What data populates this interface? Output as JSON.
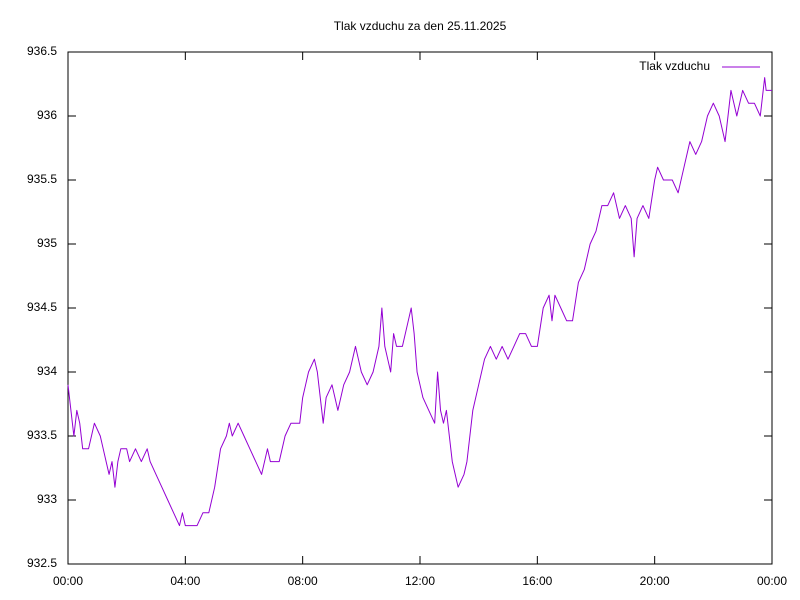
{
  "chart_data": {
    "type": "line",
    "title": "Tlak vzduchu za den 25.11.2025",
    "xlim": [
      0,
      24
    ],
    "xticks": [
      {
        "value": 0,
        "label": "00:00"
      },
      {
        "value": 4,
        "label": "04:00"
      },
      {
        "value": 8,
        "label": "08:00"
      },
      {
        "value": 12,
        "label": "12:00"
      },
      {
        "value": 16,
        "label": "16:00"
      },
      {
        "value": 20,
        "label": "20:00"
      },
      {
        "value": 24,
        "label": "00:00"
      }
    ],
    "ylim": [
      932.5,
      936.5
    ],
    "yticks": [
      932.5,
      933,
      933.5,
      934,
      934.5,
      935,
      935.5,
      936,
      936.5
    ],
    "grid": false,
    "legend": "top-right",
    "x": [
      0,
      0.1,
      0.2,
      0.3,
      0.4,
      0.5,
      0.7,
      0.8,
      0.9,
      1.1,
      1.2,
      1.3,
      1.4,
      1.5,
      1.6,
      1.7,
      1.8,
      2.0,
      2.1,
      2.3,
      2.5,
      2.7,
      2.8,
      3.0,
      3.2,
      3.4,
      3.6,
      3.8,
      3.9,
      4.0,
      4.2,
      4.4,
      4.6,
      4.8,
      5.0,
      5.2,
      5.4,
      5.5,
      5.6,
      5.8,
      6.0,
      6.2,
      6.4,
      6.6,
      6.8,
      6.9,
      7.2,
      7.4,
      7.6,
      7.9,
      8.0,
      8.1,
      8.2,
      8.4,
      8.5,
      8.6,
      8.7,
      8.8,
      9.0,
      9.2,
      9.4,
      9.6,
      9.8,
      9.9,
      10.0,
      10.2,
      10.4,
      10.6,
      10.7,
      10.8,
      10.9,
      11.0,
      11.1,
      11.2,
      11.4,
      11.6,
      11.7,
      11.8,
      11.9,
      12.0,
      12.1,
      12.3,
      12.5,
      12.6,
      12.7,
      12.8,
      12.9,
      13.0,
      13.1,
      13.2,
      13.3,
      13.5,
      13.6,
      13.7,
      13.8,
      14.0,
      14.2,
      14.4,
      14.6,
      14.8,
      15.0,
      15.2,
      15.4,
      15.6,
      15.8,
      16.0,
      16.2,
      16.4,
      16.5,
      16.6,
      16.8,
      17.0,
      17.2,
      17.4,
      17.6,
      17.8,
      18.0,
      18.2,
      18.4,
      18.6,
      18.8,
      19.0,
      19.2,
      19.3,
      19.4,
      19.6,
      19.8,
      20.0,
      20.1,
      20.3,
      20.6,
      20.8,
      21.0,
      21.2,
      21.4,
      21.6,
      21.8,
      22.0,
      22.2,
      22.4,
      22.6,
      22.8,
      23.0,
      23.2,
      23.4,
      23.6,
      23.75,
      23.8,
      24.0
    ],
    "series": [
      {
        "name": "Tlak vzduchu",
        "color": "#9400d3",
        "values": [
          933.9,
          933.7,
          933.5,
          933.7,
          933.6,
          933.4,
          933.4,
          933.5,
          933.6,
          933.5,
          933.4,
          933.3,
          933.2,
          933.3,
          933.1,
          933.3,
          933.4,
          933.4,
          933.3,
          933.4,
          933.3,
          933.4,
          933.3,
          933.2,
          933.1,
          933.0,
          932.9,
          932.8,
          932.9,
          932.8,
          932.8,
          932.8,
          932.9,
          932.9,
          933.1,
          933.4,
          933.5,
          933.6,
          933.5,
          933.6,
          933.5,
          933.4,
          933.3,
          933.2,
          933.4,
          933.3,
          933.3,
          933.5,
          933.6,
          933.6,
          933.8,
          933.9,
          934.0,
          934.1,
          934.0,
          933.8,
          933.6,
          933.8,
          933.9,
          933.7,
          933.9,
          934.0,
          934.2,
          934.1,
          934.0,
          933.9,
          934.0,
          934.2,
          934.5,
          934.2,
          934.1,
          934.0,
          934.3,
          934.2,
          934.2,
          934.4,
          934.5,
          934.3,
          934.0,
          933.9,
          933.8,
          933.7,
          933.6,
          934.0,
          933.7,
          933.6,
          933.7,
          933.5,
          933.3,
          933.2,
          933.1,
          933.2,
          933.3,
          933.5,
          933.7,
          933.9,
          934.1,
          934.2,
          934.1,
          934.2,
          934.1,
          934.2,
          934.3,
          934.3,
          934.2,
          934.2,
          934.5,
          934.6,
          934.4,
          934.6,
          934.5,
          934.4,
          934.4,
          934.7,
          934.8,
          935.0,
          935.1,
          935.3,
          935.3,
          935.4,
          935.2,
          935.3,
          935.2,
          934.9,
          935.2,
          935.3,
          935.2,
          935.5,
          935.6,
          935.5,
          935.5,
          935.4,
          935.6,
          935.8,
          935.7,
          935.8,
          936.0,
          936.1,
          936.0,
          935.8,
          936.2,
          936.0,
          936.2,
          936.1,
          936.1,
          936.0,
          936.3,
          936.2,
          936.2
        ]
      }
    ]
  }
}
